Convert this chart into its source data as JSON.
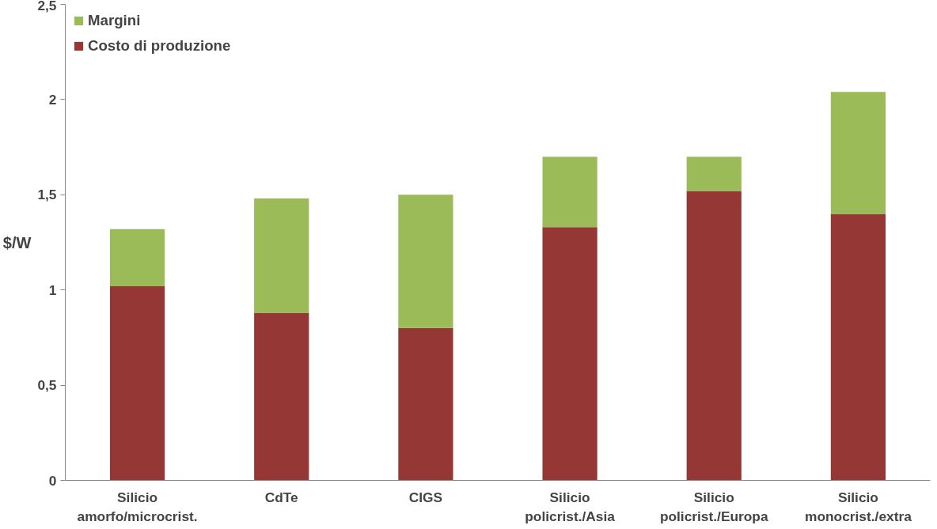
{
  "chart_data": {
    "type": "bar",
    "stacked": true,
    "ylabel": "$/W",
    "categories": [
      "Silicio\namorfo/microcrist.",
      "CdTe",
      "CIGS",
      "Silicio\npolicrist./Asia",
      "Silicio\npolicrist./Europa",
      "Silicio\nmonocrist./extra"
    ],
    "series": [
      {
        "name": "Costo di produzione",
        "color": "#953735",
        "values": [
          1.02,
          0.88,
          0.8,
          1.33,
          1.52,
          1.4
        ]
      },
      {
        "name": "Margini",
        "color": "#9bbb59",
        "values": [
          0.3,
          0.6,
          0.7,
          0.37,
          0.18,
          0.64
        ]
      }
    ],
    "ylim": [
      0,
      2.5
    ],
    "yticks": [
      {
        "value": 0,
        "label": "0"
      },
      {
        "value": 0.5,
        "label": "0,5"
      },
      {
        "value": 1,
        "label": "1"
      },
      {
        "value": 1.5,
        "label": "1,5"
      },
      {
        "value": 2,
        "label": "2"
      },
      {
        "value": 2.5,
        "label": "2,5"
      }
    ],
    "grid": false,
    "legend": "top left"
  }
}
